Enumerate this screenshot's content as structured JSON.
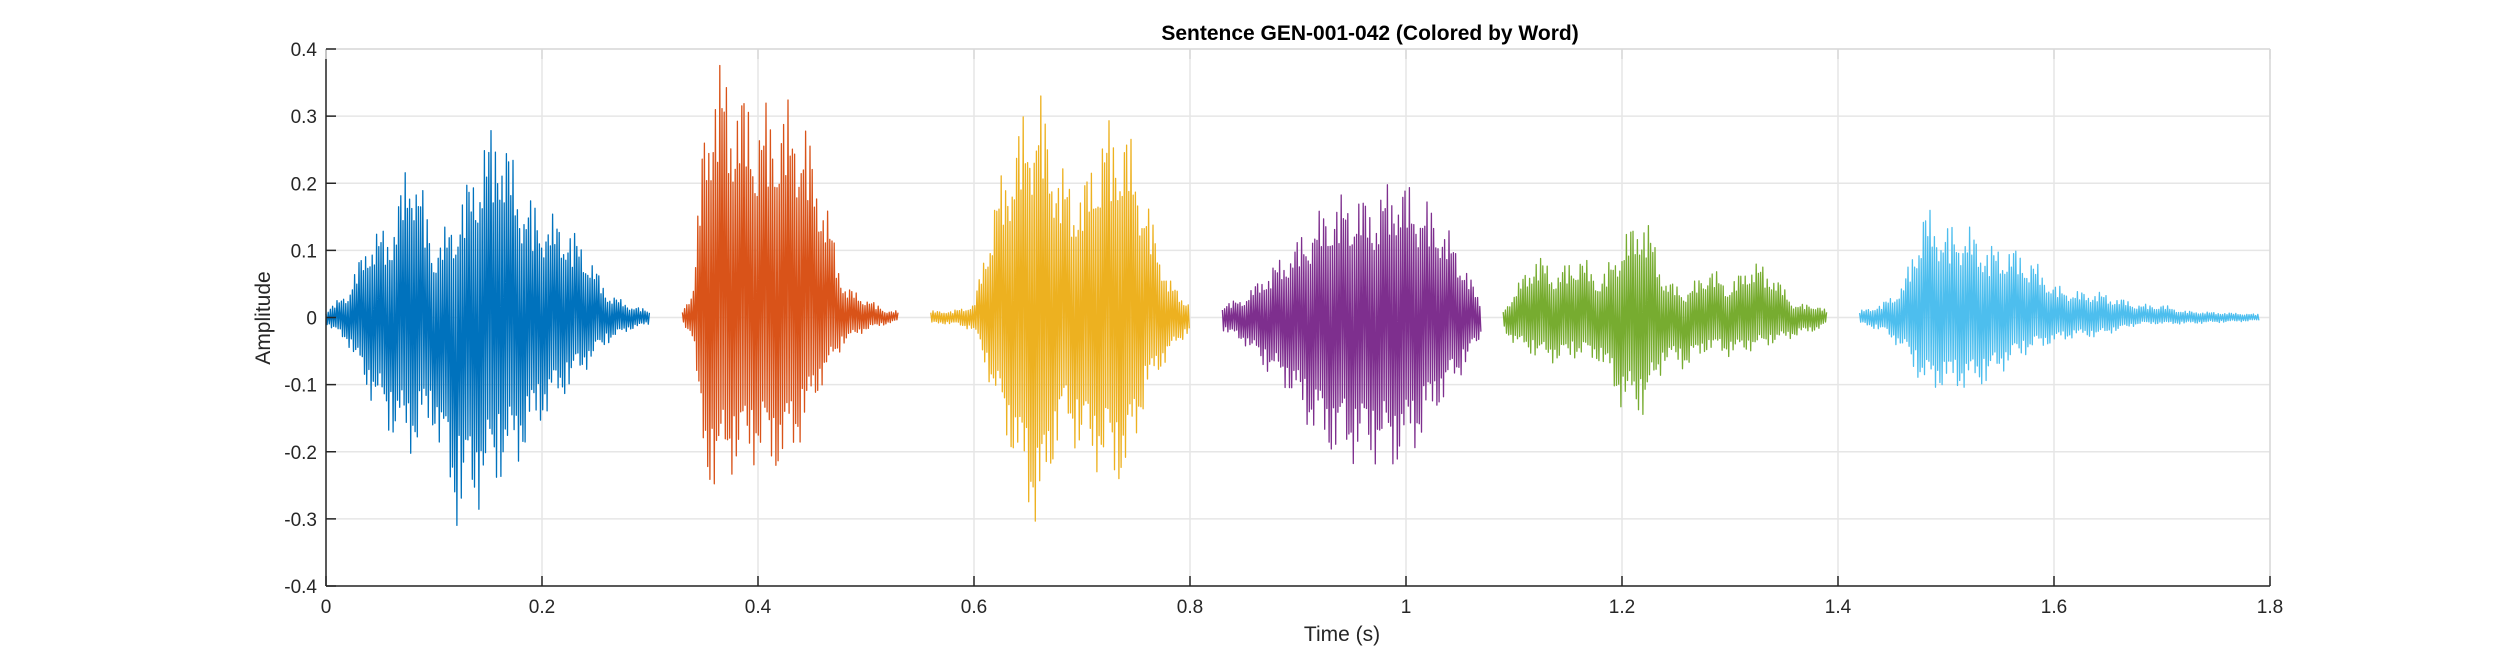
{
  "chart_data": {
    "type": "line",
    "title": "Sentence GEN-001-042 (Colored by Word)",
    "xlabel": "Time (s)",
    "ylabel": "Amplitude",
    "xlim": [
      0,
      1.8
    ],
    "ylim": [
      -0.4,
      0.4
    ],
    "xticks": [
      0,
      0.2,
      0.4,
      0.6,
      0.8,
      1,
      1.2,
      1.4,
      1.6,
      1.8
    ],
    "xtick_labels": [
      "0",
      "0.2",
      "0.4",
      "0.6",
      "0.8",
      "1",
      "1.2",
      "1.4",
      "1.6",
      "1.8"
    ],
    "yticks": [
      -0.4,
      -0.3,
      -0.2,
      -0.1,
      0,
      0.1,
      0.2,
      0.3,
      0.4
    ],
    "ytick_labels": [
      "-0.4",
      "-0.3",
      "-0.2",
      "-0.1",
      "0",
      "0.1",
      "0.2",
      "0.3",
      "0.4"
    ],
    "grid": true,
    "series": [
      {
        "color": "#0072BD",
        "x": [
          0.0,
          0.02,
          0.04,
          0.06,
          0.08,
          0.1,
          0.12,
          0.14,
          0.16,
          0.18,
          0.2,
          0.22,
          0.24,
          0.26,
          0.28,
          0.3
        ],
        "upper": [
          0.01,
          0.04,
          0.13,
          0.14,
          0.27,
          0.11,
          0.16,
          0.25,
          0.32,
          0.2,
          0.16,
          0.15,
          0.11,
          0.04,
          0.02,
          0.01
        ],
        "lower": [
          -0.01,
          -0.04,
          -0.12,
          -0.18,
          -0.21,
          -0.17,
          -0.32,
          -0.29,
          -0.25,
          -0.22,
          -0.16,
          -0.12,
          -0.08,
          -0.04,
          -0.02,
          -0.01
        ]
      },
      {
        "color": "#D95319",
        "x": [
          0.33,
          0.34,
          0.35,
          0.36,
          0.38,
          0.4,
          0.42,
          0.44,
          0.46,
          0.48,
          0.5,
          0.52,
          0.53
        ],
        "upper": [
          0.01,
          0.05,
          0.3,
          0.4,
          0.36,
          0.32,
          0.33,
          0.32,
          0.2,
          0.05,
          0.03,
          0.01,
          0.01
        ],
        "lower": [
          -0.01,
          -0.03,
          -0.26,
          -0.26,
          -0.23,
          -0.22,
          -0.24,
          -0.19,
          -0.1,
          -0.04,
          -0.02,
          -0.01,
          -0.005
        ]
      },
      {
        "color": "#EDB120",
        "x": [
          0.56,
          0.58,
          0.6,
          0.62,
          0.64,
          0.66,
          0.68,
          0.7,
          0.72,
          0.74,
          0.76,
          0.78,
          0.8
        ],
        "upper": [
          0.01,
          0.01,
          0.02,
          0.19,
          0.29,
          0.35,
          0.23,
          0.2,
          0.3,
          0.3,
          0.18,
          0.06,
          0.02
        ],
        "lower": [
          -0.01,
          -0.01,
          -0.02,
          -0.13,
          -0.24,
          -0.34,
          -0.17,
          -0.21,
          -0.24,
          -0.26,
          -0.12,
          -0.06,
          -0.02
        ]
      },
      {
        "color": "#7E2F8E",
        "x": [
          0.83,
          0.85,
          0.87,
          0.89,
          0.91,
          0.93,
          0.95,
          0.97,
          0.99,
          1.01,
          1.03,
          1.05,
          1.07
        ],
        "upper": [
          0.02,
          0.03,
          0.07,
          0.1,
          0.14,
          0.18,
          0.19,
          0.18,
          0.22,
          0.19,
          0.16,
          0.1,
          0.02
        ],
        "lower": [
          -0.02,
          -0.04,
          -0.08,
          -0.11,
          -0.17,
          -0.21,
          -0.22,
          -0.22,
          -0.23,
          -0.2,
          -0.14,
          -0.09,
          -0.03
        ]
      },
      {
        "color": "#77AC30",
        "x": [
          1.09,
          1.1,
          1.12,
          1.14,
          1.16,
          1.18,
          1.2,
          1.22,
          1.24,
          1.26,
          1.28,
          1.3,
          1.32,
          1.34,
          1.36,
          1.38,
          1.39
        ],
        "upper": [
          0.01,
          0.04,
          0.1,
          0.07,
          0.1,
          0.06,
          0.12,
          0.17,
          0.06,
          0.04,
          0.08,
          0.05,
          0.09,
          0.07,
          0.02,
          0.02,
          0.01
        ],
        "lower": [
          -0.02,
          -0.04,
          -0.06,
          -0.07,
          -0.06,
          -0.07,
          -0.14,
          -0.15,
          -0.07,
          -0.08,
          -0.05,
          -0.06,
          -0.05,
          -0.04,
          -0.03,
          -0.02,
          -0.01
        ]
      },
      {
        "color": "#4DBEEE",
        "x": [
          1.42,
          1.44,
          1.46,
          1.48,
          1.5,
          1.52,
          1.54,
          1.56,
          1.58,
          1.6,
          1.62,
          1.64,
          1.66,
          1.68,
          1.7,
          1.72,
          1.79
        ],
        "upper": [
          0.01,
          0.02,
          0.05,
          0.17,
          0.14,
          0.14,
          0.11,
          0.11,
          0.09,
          0.05,
          0.04,
          0.04,
          0.03,
          0.02,
          0.02,
          0.01,
          0.005
        ],
        "lower": [
          -0.01,
          -0.02,
          -0.05,
          -0.11,
          -0.11,
          -0.11,
          -0.1,
          -0.07,
          -0.05,
          -0.04,
          -0.03,
          -0.03,
          -0.02,
          -0.01,
          -0.01,
          -0.01,
          -0.005
        ]
      }
    ]
  }
}
